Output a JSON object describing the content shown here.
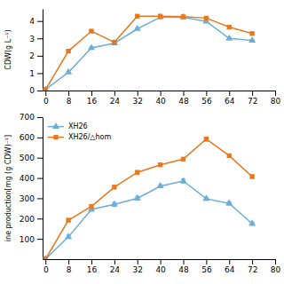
{
  "chart_data": [
    {
      "type": "line",
      "y_label": "CDW(g L⁻¹)",
      "x": [
        0,
        8,
        16,
        24,
        32,
        40,
        48,
        56,
        64,
        72
      ],
      "xlim": [
        -1,
        80
      ],
      "xticks": [
        0,
        8,
        16,
        24,
        32,
        40,
        48,
        56,
        64,
        72,
        80
      ],
      "ylim": [
        0,
        4.7
      ],
      "yticks": [
        0,
        1,
        2,
        3,
        4
      ],
      "series": [
        {
          "color": "#6baed6",
          "marker": "triangle",
          "values": [
            0.05,
            1.05,
            2.45,
            2.72,
            3.55,
            4.22,
            4.22,
            3.98,
            3.0,
            2.88
          ],
          "errors": [
            0.0,
            0.07,
            0.06,
            0.07,
            0.05,
            0.05,
            0.05,
            0.06,
            0.08,
            0.06
          ]
        },
        {
          "color": "#e6781e",
          "marker": "square",
          "values": [
            0.05,
            2.27,
            3.42,
            2.78,
            4.28,
            4.28,
            4.25,
            4.17,
            3.65,
            3.28
          ],
          "errors": [
            0.0,
            0.06,
            0.06,
            0.05,
            0.05,
            0.05,
            0.05,
            0.05,
            0.07,
            0.06
          ]
        }
      ]
    },
    {
      "type": "line",
      "y_label": "ine production[mg (g CDW)⁻¹]",
      "x": [
        0,
        8,
        16,
        24,
        32,
        40,
        48,
        56,
        64,
        72
      ],
      "xlim": [
        -1,
        80
      ],
      "xticks": [
        0,
        8,
        16,
        24,
        32,
        40,
        48,
        56,
        64,
        72,
        80
      ],
      "ylim": [
        0,
        700
      ],
      "yticks": [
        100,
        200,
        300,
        400,
        500,
        600,
        700
      ],
      "legend": "top-left",
      "series": [
        {
          "name": "XH26",
          "color": "#6baed6",
          "marker": "triangle",
          "values": [
            0,
            110,
            245,
            270,
            300,
            360,
            385,
            298,
            275,
            175
          ],
          "errors": [
            0,
            8,
            8,
            10,
            10,
            8,
            10,
            8,
            8,
            8
          ]
        },
        {
          "name": "XH26/△hom",
          "color": "#e6781e",
          "marker": "square",
          "values": [
            0,
            192,
            260,
            355,
            428,
            465,
            493,
            592,
            510,
            407
          ],
          "errors": [
            0,
            8,
            8,
            8,
            8,
            8,
            8,
            10,
            8,
            8
          ]
        }
      ]
    }
  ]
}
